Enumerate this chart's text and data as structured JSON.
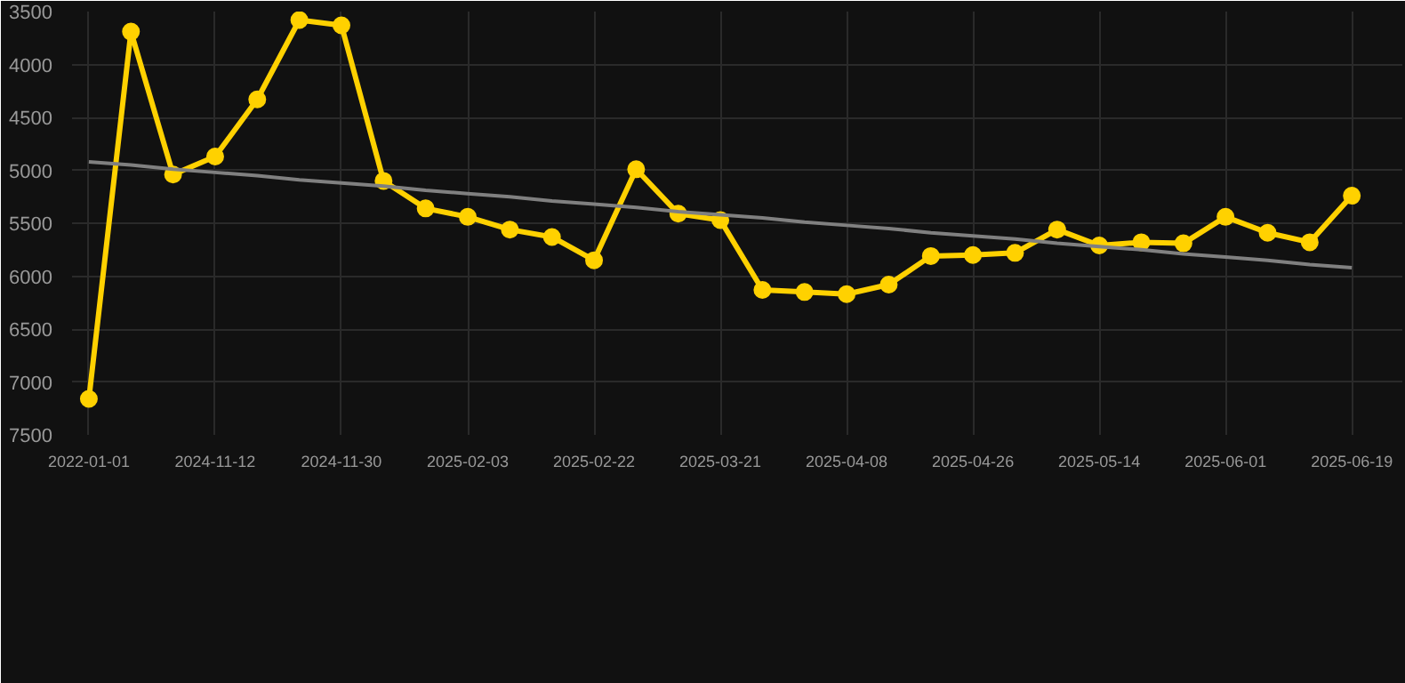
{
  "chart_data": {
    "type": "line",
    "categories": [
      "2022-01-01",
      null,
      null,
      "2024-11-12",
      null,
      null,
      "2024-11-30",
      null,
      null,
      "2025-02-03",
      null,
      null,
      "2025-02-22",
      null,
      null,
      "2025-03-21",
      null,
      null,
      "2025-04-08",
      null,
      null,
      "2025-04-26",
      null,
      null,
      "2025-05-14",
      null,
      null,
      "2025-06-01",
      null,
      null,
      "2025-06-19"
    ],
    "series": [
      {
        "color": "#ffd100",
        "values": [
          7160,
          3690,
          5040,
          4870,
          4330,
          3580,
          3630,
          5100,
          5360,
          5440,
          5560,
          5630,
          5850,
          4990,
          5410,
          5470,
          6130,
          6150,
          6170,
          6080,
          5810,
          5800,
          5780,
          5560,
          5710,
          5680,
          5690,
          5440,
          5590,
          5680,
          5240
        ],
        "marker": "circle"
      },
      {
        "type": "line",
        "color": "#808080",
        "values": [
          4920,
          4950,
          4990,
          5020,
          5050,
          5090,
          5120,
          5150,
          5190,
          5220,
          5250,
          5290,
          5320,
          5350,
          5390,
          5420,
          5450,
          5490,
          5520,
          5550,
          5590,
          5620,
          5650,
          5690,
          5720,
          5750,
          5790,
          5820,
          5850,
          5890,
          5920
        ],
        "marker": "none"
      }
    ],
    "ylim": [
      7500,
      3500
    ],
    "yticks": [
      3500,
      4000,
      4500,
      5000,
      5500,
      6000,
      6500,
      7000,
      7500
    ],
    "grid": true
  }
}
